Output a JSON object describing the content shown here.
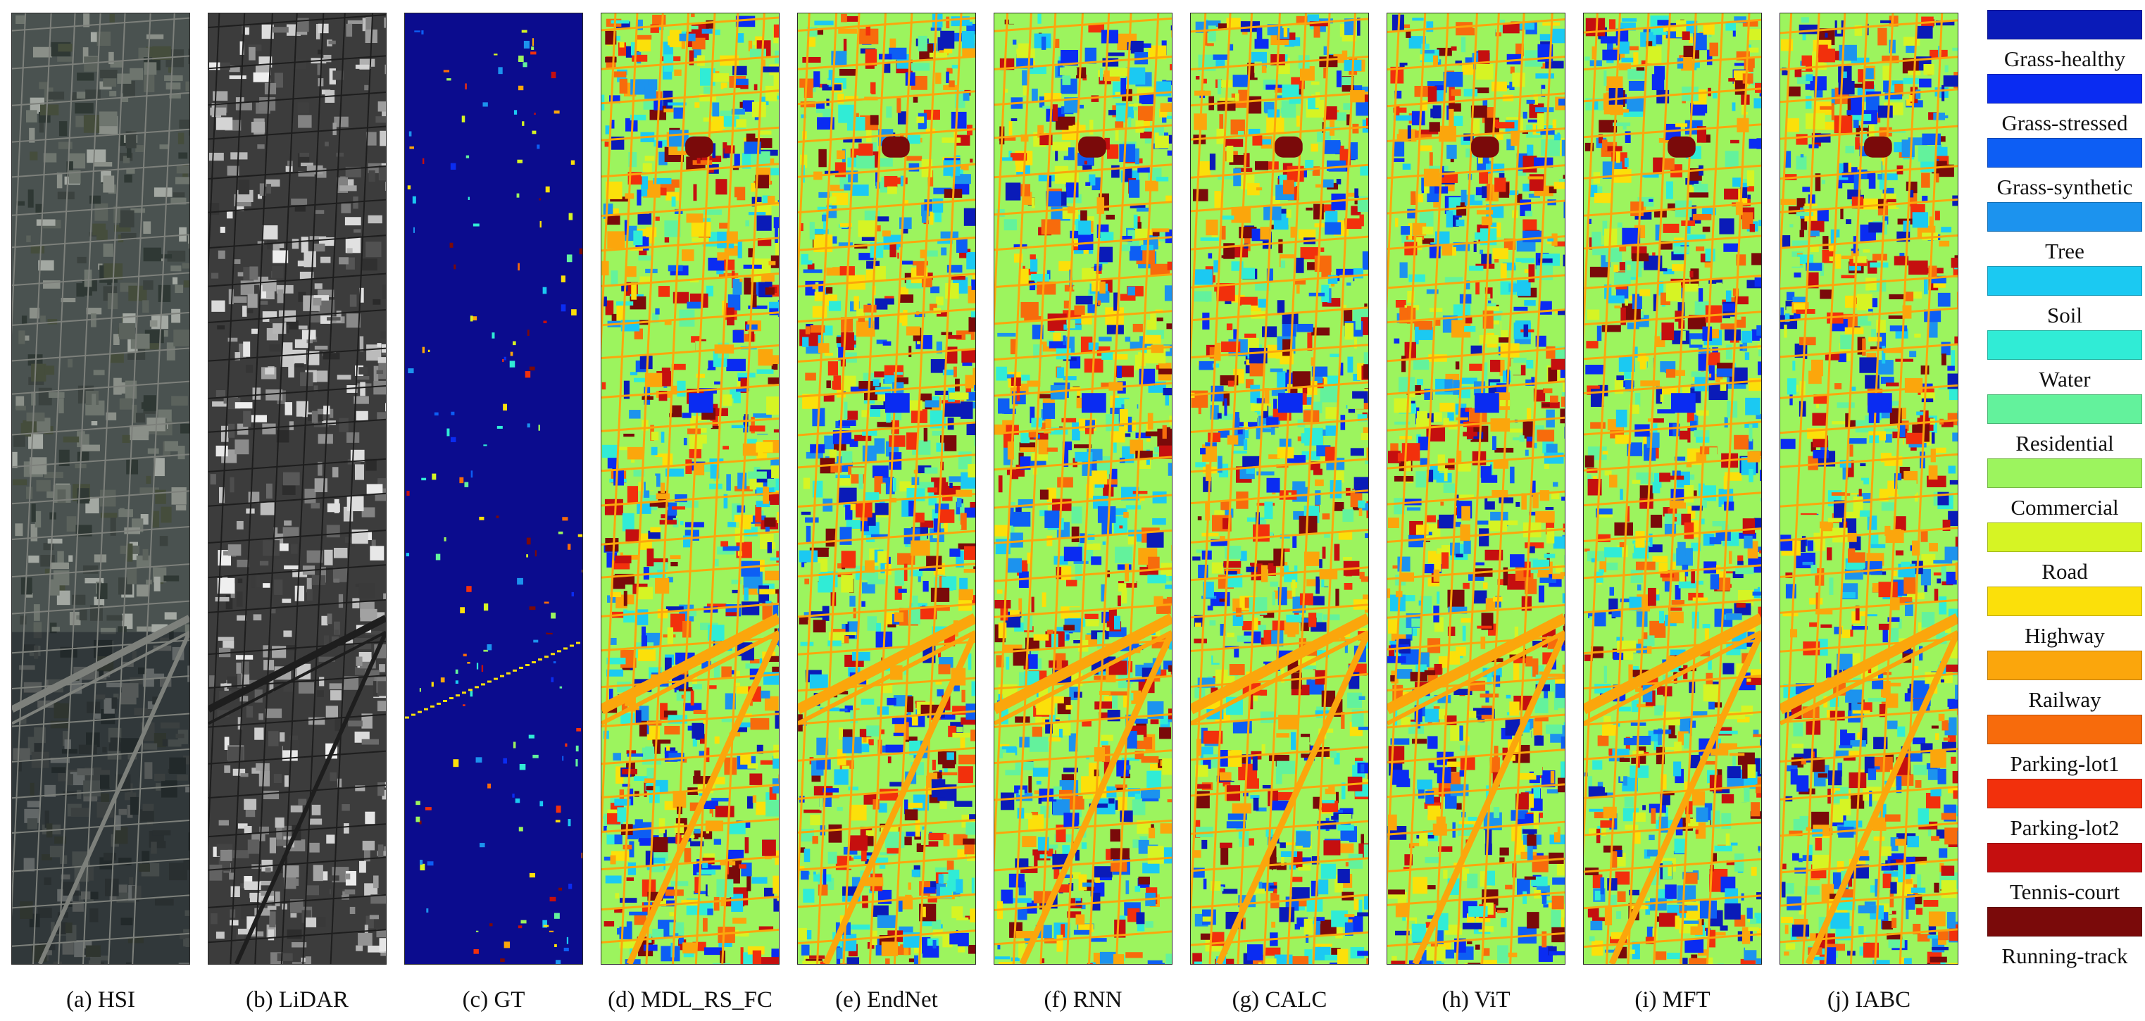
{
  "panels": [
    {
      "key": "hsi",
      "caption": "(a) HSI",
      "render": "rgb-aerial"
    },
    {
      "key": "lidar",
      "caption": "(b) LiDAR",
      "render": "gray-elevation"
    },
    {
      "key": "gt",
      "caption": "(c) GT",
      "render": "ground-truth-sparse"
    },
    {
      "key": "mdl",
      "caption": "(d) MDL_RS_FC",
      "render": "classification-map"
    },
    {
      "key": "endnet",
      "caption": "(e) EndNet",
      "render": "classification-map"
    },
    {
      "key": "rnn",
      "caption": "(f) RNN",
      "render": "classification-map"
    },
    {
      "key": "calc",
      "caption": "(g) CALC",
      "render": "classification-map"
    },
    {
      "key": "vit",
      "caption": "(h) ViT",
      "render": "classification-map"
    },
    {
      "key": "mft",
      "caption": "(i) MFT",
      "render": "classification-map"
    },
    {
      "key": "iabc",
      "caption": "(j) IABC",
      "render": "classification-map"
    }
  ],
  "legend": [
    {
      "label": "Grass-healthy",
      "color": "#0a1bb8"
    },
    {
      "label": "Grass-stressed",
      "color": "#0a2cf2"
    },
    {
      "label": "Grass-synthetic",
      "color": "#0d5ef4"
    },
    {
      "label": "Tree",
      "color": "#1c93ee"
    },
    {
      "label": "Soil",
      "color": "#1bc9f2"
    },
    {
      "label": "Water",
      "color": "#30ecd6"
    },
    {
      "label": "Residential",
      "color": "#63f29c"
    },
    {
      "label": "Commercial",
      "color": "#9cf45e"
    },
    {
      "label": "Road",
      "color": "#d6f424"
    },
    {
      "label": "Highway",
      "color": "#fbe00a"
    },
    {
      "label": "Railway",
      "color": "#fba60c"
    },
    {
      "label": "Parking-lot1",
      "color": "#f76b0c"
    },
    {
      "label": "Parking-lot2",
      "color": "#f2300c"
    },
    {
      "label": "Tennis-court",
      "color": "#c50f0f"
    },
    {
      "label": "Running-track",
      "color": "#7a0a0a"
    }
  ],
  "palette": {
    "gt_background": "#0b0c8e",
    "lidar_base": "#3c3c3c",
    "hsi_base": "#4a5250"
  }
}
